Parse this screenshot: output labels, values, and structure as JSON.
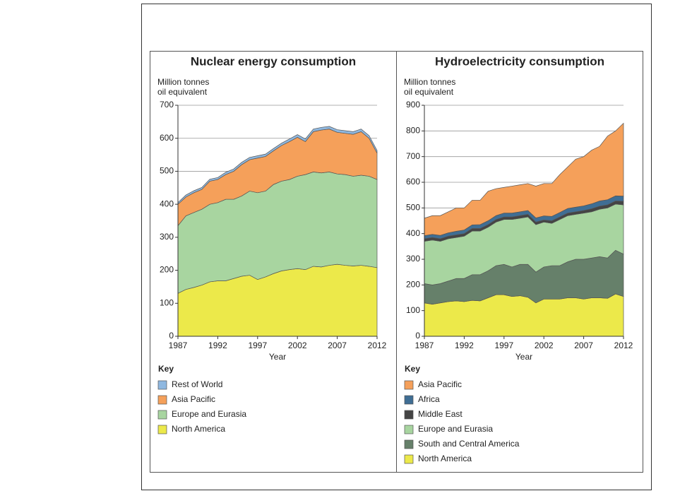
{
  "chart_data": [
    {
      "type": "stacked_area",
      "title": "Nuclear energy consumption",
      "ylabel": [
        "Million tonnes",
        "oil equivalent"
      ],
      "xlabel": "Year",
      "legend_title": "Key",
      "x": [
        1987,
        1988,
        1989,
        1990,
        1991,
        1992,
        1993,
        1994,
        1995,
        1996,
        1997,
        1998,
        1999,
        2000,
        2001,
        2002,
        2003,
        2004,
        2005,
        2006,
        2007,
        2008,
        2009,
        2010,
        2011,
        2012
      ],
      "xlim": [
        1987,
        2012
      ],
      "xticks": [
        1987,
        1992,
        1997,
        2002,
        2007,
        2012
      ],
      "ylim": [
        0,
        700
      ],
      "yticks": [
        0,
        100,
        200,
        300,
        400,
        500,
        600,
        700
      ],
      "grid": true,
      "series": [
        {
          "name": "North America",
          "color": "#ece94a",
          "values": [
            130,
            142,
            148,
            155,
            165,
            168,
            168,
            175,
            182,
            185,
            172,
            180,
            190,
            198,
            202,
            205,
            202,
            212,
            210,
            215,
            218,
            215,
            213,
            215,
            212,
            208
          ]
        },
        {
          "name": "Europe and Eurasia",
          "color": "#a8d5a0",
          "values": [
            205,
            223,
            227,
            230,
            235,
            237,
            247,
            240,
            243,
            255,
            263,
            260,
            270,
            272,
            273,
            280,
            288,
            286,
            285,
            283,
            274,
            275,
            272,
            273,
            273,
            267
          ]
        },
        {
          "name": "Asia Pacific",
          "color": "#f5a05a",
          "values": [
            65,
            57,
            60,
            60,
            70,
            70,
            75,
            85,
            95,
            95,
            105,
            105,
            102,
            108,
            115,
            118,
            100,
            122,
            130,
            130,
            126,
            125,
            127,
            132,
            115,
            80
          ]
        },
        {
          "name": "Rest of World",
          "color": "#8fb8e0",
          "values": [
            5,
            6,
            6,
            6,
            6,
            6,
            7,
            7,
            7,
            7,
            7,
            7,
            7,
            7,
            8,
            8,
            8,
            8,
            8,
            8,
            8,
            8,
            8,
            8,
            8,
            8
          ]
        }
      ]
    },
    {
      "type": "stacked_area",
      "title": "Hydroelectricity consumption",
      "ylabel": [
        "Million tonnes",
        "oil equivalent"
      ],
      "xlabel": "Year",
      "legend_title": "Key",
      "x": [
        1987,
        1988,
        1989,
        1990,
        1991,
        1992,
        1993,
        1994,
        1995,
        1996,
        1997,
        1998,
        1999,
        2000,
        2001,
        2002,
        2003,
        2004,
        2005,
        2006,
        2007,
        2008,
        2009,
        2010,
        2011,
        2012
      ],
      "xlim": [
        1987,
        2012
      ],
      "xticks": [
        1987,
        1992,
        1997,
        2002,
        2007,
        2012
      ],
      "ylim": [
        0,
        900
      ],
      "yticks": [
        0,
        100,
        200,
        300,
        400,
        500,
        600,
        700,
        800,
        900
      ],
      "grid": true,
      "series": [
        {
          "name": "North America",
          "color": "#ece94a",
          "values": [
            130,
            125,
            130,
            135,
            138,
            135,
            140,
            138,
            150,
            162,
            162,
            155,
            158,
            152,
            130,
            145,
            145,
            145,
            150,
            150,
            145,
            150,
            150,
            148,
            165,
            155
          ]
        },
        {
          "name": "South and Central America",
          "color": "#66806a",
          "values": [
            75,
            75,
            75,
            80,
            87,
            90,
            100,
            102,
            105,
            113,
            118,
            115,
            122,
            128,
            120,
            125,
            130,
            130,
            140,
            150,
            155,
            155,
            160,
            157,
            170,
            165
          ]
        },
        {
          "name": "Europe and Eurasia",
          "color": "#a8d5a0",
          "values": [
            165,
            175,
            165,
            165,
            160,
            165,
            170,
            170,
            170,
            170,
            175,
            185,
            180,
            185,
            185,
            175,
            165,
            180,
            180,
            175,
            180,
            180,
            185,
            195,
            180,
            192
          ]
        },
        {
          "name": "Middle East",
          "color": "#444444",
          "values": [
            10,
            10,
            10,
            10,
            10,
            10,
            10,
            10,
            10,
            10,
            10,
            10,
            10,
            10,
            10,
            8,
            10,
            10,
            10,
            10,
            10,
            12,
            12,
            12,
            12,
            14
          ]
        },
        {
          "name": "Africa",
          "color": "#3f6e94",
          "values": [
            12,
            12,
            13,
            13,
            14,
            14,
            14,
            15,
            15,
            15,
            15,
            15,
            15,
            15,
            16,
            16,
            17,
            17,
            18,
            18,
            18,
            19,
            20,
            20,
            20,
            20
          ]
        },
        {
          "name": "Asia Pacific",
          "color": "#f5a05a",
          "values": [
            68,
            73,
            77,
            82,
            91,
            86,
            96,
            95,
            115,
            105,
            100,
            105,
            105,
            105,
            124,
            126,
            128,
            148,
            162,
            187,
            192,
            209,
            213,
            248,
            253,
            284
          ]
        }
      ]
    }
  ]
}
